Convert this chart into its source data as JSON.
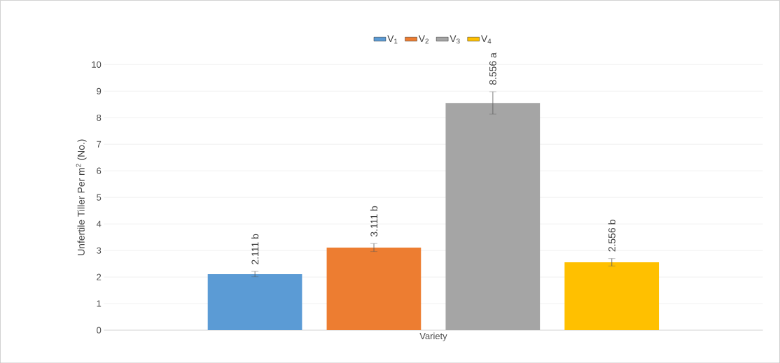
{
  "chart_data": {
    "type": "bar",
    "ylabel": "Unfertile Tiller Per m$^{2}$ (No.)",
    "categories": [
      "Variety"
    ],
    "ylim": [
      0,
      10
    ],
    "yticks": [
      0,
      1,
      2,
      3,
      4,
      5,
      6,
      7,
      8,
      9,
      10
    ],
    "grid": "y",
    "legend": "top",
    "series": [
      {
        "name": "V$_{1}$",
        "color": "#5b9bd5",
        "values": [
          2.111
        ],
        "errors": [
          0.1
        ],
        "value_labels": [
          "2.111 b"
        ]
      },
      {
        "name": "V$_{2}$",
        "color": "#ed7d31",
        "values": [
          3.111
        ],
        "errors": [
          0.15
        ],
        "value_labels": [
          "3.111 b"
        ]
      },
      {
        "name": "V$_{3}$",
        "color": "#a5a5a5",
        "values": [
          8.556
        ],
        "errors": [
          0.42
        ],
        "value_labels": [
          "8.556 a"
        ]
      },
      {
        "name": "V$_{4}$",
        "color": "#ffc000",
        "values": [
          2.556
        ],
        "errors": [
          0.14
        ],
        "value_labels": [
          "2.556 b"
        ]
      }
    ]
  }
}
